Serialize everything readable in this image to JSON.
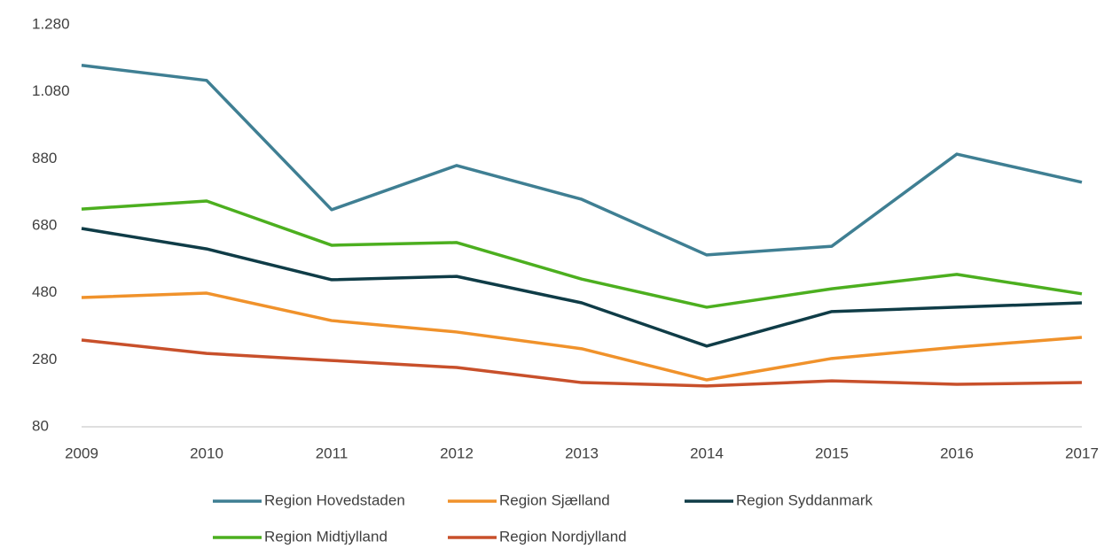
{
  "chart_data": {
    "type": "line",
    "categories": [
      "2009",
      "2010",
      "2011",
      "2012",
      "2013",
      "2014",
      "2015",
      "2016",
      "2017"
    ],
    "series": [
      {
        "name": "Region Hovedstaden",
        "color": "#3f7f93",
        "values": [
          1159,
          1114,
          728,
          860,
          759,
          593,
          619,
          894,
          810
        ]
      },
      {
        "name": "Region Sjælland",
        "color": "#f0922b",
        "values": [
          466,
          479,
          397,
          363,
          313,
          220,
          284,
          318,
          347
        ]
      },
      {
        "name": "Region Syddanmark",
        "color": "#0f3c47",
        "values": [
          672,
          611,
          519,
          529,
          450,
          321,
          424,
          437,
          450
        ]
      },
      {
        "name": "Region Midtjylland",
        "color": "#4caf1f",
        "values": [
          730,
          754,
          622,
          630,
          521,
          437,
          492,
          535,
          477
        ]
      },
      {
        "name": "Region Nordjylland",
        "color": "#c8502b",
        "values": [
          339,
          299,
          278,
          257,
          212,
          202,
          217,
          207,
          212
        ]
      }
    ],
    "ylim": [
      80,
      1280
    ],
    "yticks": [
      80,
      280,
      480,
      680,
      880,
      {
        "value": 1080,
        "label": "1.080"
      },
      {
        "value": 1280,
        "label": "1.280"
      }
    ],
    "grid": false
  }
}
